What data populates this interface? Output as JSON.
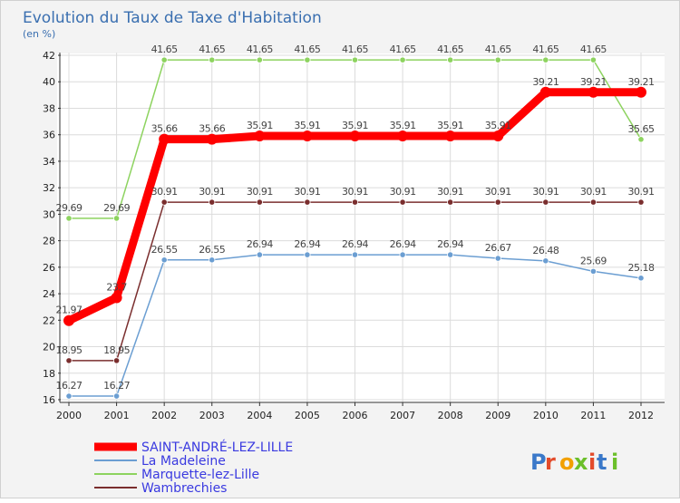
{
  "chart_data": {
    "type": "line",
    "title": "Evolution du Taux de Taxe d'Habitation",
    "subtitle": "(en %)",
    "categories": [
      "2000",
      "2001",
      "2002",
      "2003",
      "2004",
      "2005",
      "2006",
      "2007",
      "2008",
      "2009",
      "2010",
      "2011",
      "2012"
    ],
    "ylim": [
      16,
      42
    ],
    "yticks": [
      16,
      18,
      20,
      22,
      24,
      26,
      28,
      30,
      32,
      34,
      36,
      38,
      40,
      42
    ],
    "grid": true,
    "legend_position": "bottom-left",
    "series": [
      {
        "name": "SAINT-ANDRÉ-LEZ-LILLE",
        "color": "#ff0000",
        "highlight": true,
        "values": [
          21.97,
          23.7,
          35.66,
          35.66,
          35.91,
          35.91,
          35.91,
          35.91,
          35.91,
          35.91,
          39.21,
          39.21,
          39.21
        ],
        "labels": [
          "21.97",
          "23.7",
          "35.66",
          "35.66",
          "35.91",
          "35.91",
          "35.91",
          "35.91",
          "35.91",
          "35.91",
          "39.21",
          "39.21",
          "39.21"
        ]
      },
      {
        "name": "La Madeleine",
        "color": "#6b9ed2",
        "highlight": false,
        "values": [
          16.27,
          16.27,
          26.55,
          26.55,
          26.94,
          26.94,
          26.94,
          26.94,
          26.94,
          26.67,
          26.48,
          25.69,
          25.18
        ],
        "labels": [
          "16.27",
          "16.27",
          "26.55",
          "26.55",
          "26.94",
          "26.94",
          "26.94",
          "26.94",
          "26.94",
          "26.67",
          "26.48",
          "25.69",
          "25.18"
        ]
      },
      {
        "name": "Marquette-lez-Lille",
        "color": "#8dd35f",
        "highlight": false,
        "values": [
          29.69,
          29.69,
          41.65,
          41.65,
          41.65,
          41.65,
          41.65,
          41.65,
          41.65,
          41.65,
          41.65,
          41.65,
          35.65
        ],
        "labels": [
          "29.69",
          "29.69",
          "41.65",
          "41.65",
          "41.65",
          "41.65",
          "41.65",
          "41.65",
          "41.65",
          "41.65",
          "41.65",
          "41.65",
          "35.65"
        ]
      },
      {
        "name": "Wambrechies",
        "color": "#7a2e2e",
        "highlight": false,
        "values": [
          18.95,
          18.95,
          30.91,
          30.91,
          30.91,
          30.91,
          30.91,
          30.91,
          30.91,
          30.91,
          30.91,
          30.91,
          30.91
        ],
        "labels": [
          "18.95",
          "18.95",
          "30.91",
          "30.91",
          "30.91",
          "30.91",
          "30.91",
          "30.91",
          "30.91",
          "30.91",
          "30.91",
          "30.91",
          "30.91"
        ]
      }
    ]
  },
  "logo": {
    "text": "Proxiti",
    "colors": [
      "#3a78c9",
      "#e34b2b",
      "#f2a000",
      "#6bbf2a",
      "#e34b2b",
      "#3a78c9",
      "#6bbf2a"
    ]
  }
}
